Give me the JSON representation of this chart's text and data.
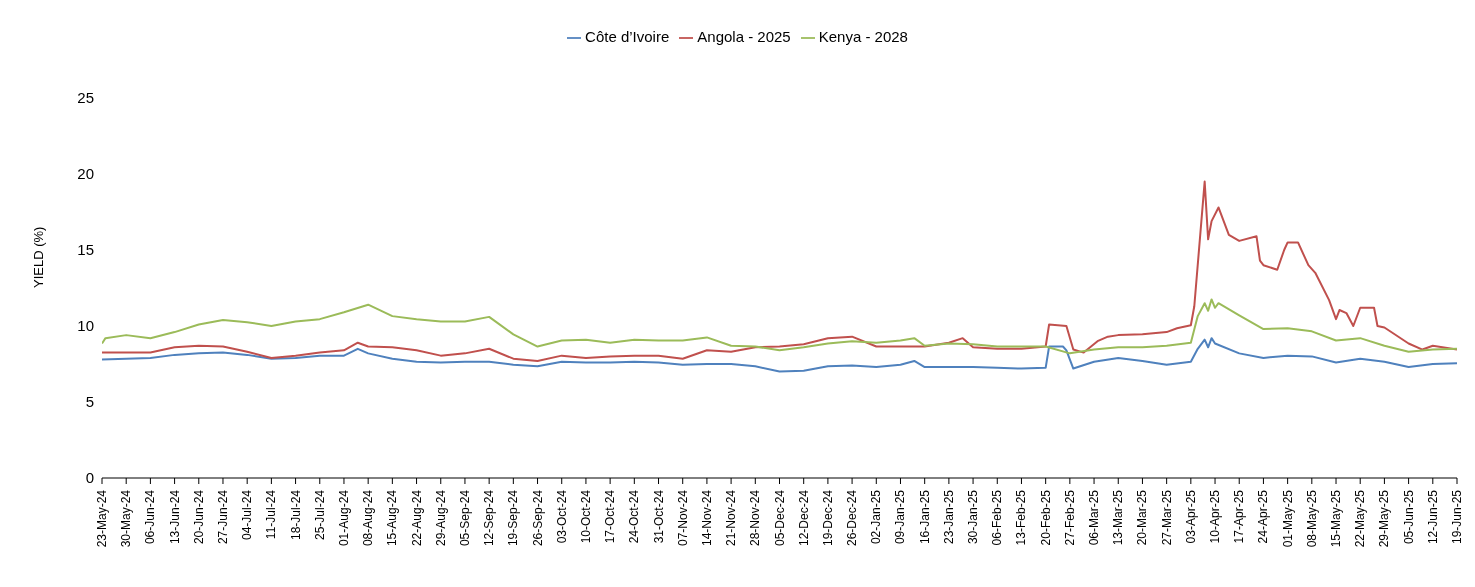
{
  "chart_data": {
    "type": "line",
    "ylabel": "YIELD (%)",
    "legend": "top",
    "grid": false,
    "marker": "none",
    "line_style": "solid",
    "ylim": [
      0,
      25
    ],
    "yticks": [
      0,
      5,
      10,
      15,
      20,
      25
    ],
    "xlim": [
      "2024-05-23",
      "2025-06-19"
    ],
    "xticks": [
      {
        "value": "2024-05-23",
        "label": "23-May-24"
      },
      {
        "value": "2024-05-30",
        "label": "30-May-24"
      },
      {
        "value": "2024-06-06",
        "label": "06-Jun-24"
      },
      {
        "value": "2024-06-13",
        "label": "13-Jun-24"
      },
      {
        "value": "2024-06-20",
        "label": "20-Jun-24"
      },
      {
        "value": "2024-06-27",
        "label": "27-Jun-24"
      },
      {
        "value": "2024-07-04",
        "label": "04-Jul-24"
      },
      {
        "value": "2024-07-11",
        "label": "11-Jul-24"
      },
      {
        "value": "2024-07-18",
        "label": "18-Jul-24"
      },
      {
        "value": "2024-07-25",
        "label": "25-Jul-24"
      },
      {
        "value": "2024-08-01",
        "label": "01-Aug-24"
      },
      {
        "value": "2024-08-08",
        "label": "08-Aug-24"
      },
      {
        "value": "2024-08-15",
        "label": "15-Aug-24"
      },
      {
        "value": "2024-08-22",
        "label": "22-Aug-24"
      },
      {
        "value": "2024-08-29",
        "label": "29-Aug-24"
      },
      {
        "value": "2024-09-05",
        "label": "05-Sep-24"
      },
      {
        "value": "2024-09-12",
        "label": "12-Sep-24"
      },
      {
        "value": "2024-09-19",
        "label": "19-Sep-24"
      },
      {
        "value": "2024-09-26",
        "label": "26-Sep-24"
      },
      {
        "value": "2024-10-03",
        "label": "03-Oct-24"
      },
      {
        "value": "2024-10-10",
        "label": "10-Oct-24"
      },
      {
        "value": "2024-10-17",
        "label": "17-Oct-24"
      },
      {
        "value": "2024-10-24",
        "label": "24-Oct-24"
      },
      {
        "value": "2024-10-31",
        "label": "31-Oct-24"
      },
      {
        "value": "2024-11-07",
        "label": "07-Nov-24"
      },
      {
        "value": "2024-11-14",
        "label": "14-Nov-24"
      },
      {
        "value": "2024-11-21",
        "label": "21-Nov-24"
      },
      {
        "value": "2024-11-28",
        "label": "28-Nov-24"
      },
      {
        "value": "2024-12-05",
        "label": "05-Dec-24"
      },
      {
        "value": "2024-12-12",
        "label": "12-Dec-24"
      },
      {
        "value": "2024-12-19",
        "label": "19-Dec-24"
      },
      {
        "value": "2024-12-26",
        "label": "26-Dec-24"
      },
      {
        "value": "2025-01-02",
        "label": "02-Jan-25"
      },
      {
        "value": "2025-01-09",
        "label": "09-Jan-25"
      },
      {
        "value": "2025-01-16",
        "label": "16-Jan-25"
      },
      {
        "value": "2025-01-23",
        "label": "23-Jan-25"
      },
      {
        "value": "2025-01-30",
        "label": "30-Jan-25"
      },
      {
        "value": "2025-02-06",
        "label": "06-Feb-25"
      },
      {
        "value": "2025-02-13",
        "label": "13-Feb-25"
      },
      {
        "value": "2025-02-20",
        "label": "20-Feb-25"
      },
      {
        "value": "2025-02-27",
        "label": "27-Feb-25"
      },
      {
        "value": "2025-03-06",
        "label": "06-Mar-25"
      },
      {
        "value": "2025-03-13",
        "label": "13-Mar-25"
      },
      {
        "value": "2025-03-20",
        "label": "20-Mar-25"
      },
      {
        "value": "2025-03-27",
        "label": "27-Mar-25"
      },
      {
        "value": "2025-04-03",
        "label": "03-Apr-25"
      },
      {
        "value": "2025-04-10",
        "label": "10-Apr-25"
      },
      {
        "value": "2025-04-17",
        "label": "17-Apr-25"
      },
      {
        "value": "2025-04-24",
        "label": "24-Apr-25"
      },
      {
        "value": "2025-05-01",
        "label": "01-May-25"
      },
      {
        "value": "2025-05-08",
        "label": "08-May-25"
      },
      {
        "value": "2025-05-15",
        "label": "15-May-25"
      },
      {
        "value": "2025-05-22",
        "label": "22-May-25"
      },
      {
        "value": "2025-05-29",
        "label": "29-May-25"
      },
      {
        "value": "2025-06-05",
        "label": "05-Jun-25"
      },
      {
        "value": "2025-06-12",
        "label": "12-Jun-25"
      },
      {
        "value": "2025-06-19",
        "label": "19-Jun-25"
      }
    ],
    "series": [
      {
        "name": "Côte d’Ivoire",
        "color": "#4f81bd",
        "x": [
          "2024-05-23",
          "2024-05-30",
          "2024-06-06",
          "2024-06-13",
          "2024-06-20",
          "2024-06-27",
          "2024-07-04",
          "2024-07-11",
          "2024-07-18",
          "2024-07-25",
          "2024-08-01",
          "2024-08-05",
          "2024-08-08",
          "2024-08-15",
          "2024-08-22",
          "2024-08-29",
          "2024-09-05",
          "2024-09-12",
          "2024-09-19",
          "2024-09-26",
          "2024-10-03",
          "2024-10-10",
          "2024-10-17",
          "2024-10-24",
          "2024-10-31",
          "2024-11-07",
          "2024-11-14",
          "2024-11-21",
          "2024-11-28",
          "2024-12-05",
          "2024-12-12",
          "2024-12-19",
          "2024-12-26",
          "2025-01-02",
          "2025-01-09",
          "2025-01-13",
          "2025-01-16",
          "2025-01-23",
          "2025-01-30",
          "2025-02-06",
          "2025-02-13",
          "2025-02-20",
          "2025-02-21",
          "2025-02-25",
          "2025-02-26",
          "2025-02-28",
          "2025-03-06",
          "2025-03-13",
          "2025-03-20",
          "2025-03-27",
          "2025-04-03",
          "2025-04-05",
          "2025-04-07",
          "2025-04-08",
          "2025-04-09",
          "2025-04-10",
          "2025-04-17",
          "2025-04-24",
          "2025-05-01",
          "2025-05-08",
          "2025-05-15",
          "2025-05-22",
          "2025-05-29",
          "2025-06-05",
          "2025-06-12",
          "2025-06-19"
        ],
        "values": [
          7.8,
          7.85,
          7.9,
          8.1,
          8.2,
          8.25,
          8.1,
          7.85,
          7.9,
          8.05,
          8.05,
          8.5,
          8.2,
          7.85,
          7.65,
          7.6,
          7.65,
          7.65,
          7.45,
          7.35,
          7.65,
          7.6,
          7.6,
          7.65,
          7.6,
          7.45,
          7.5,
          7.5,
          7.35,
          7.0,
          7.05,
          7.35,
          7.4,
          7.3,
          7.45,
          7.7,
          7.3,
          7.3,
          7.3,
          7.25,
          7.2,
          7.25,
          8.65,
          8.65,
          8.4,
          7.2,
          7.65,
          7.9,
          7.7,
          7.45,
          7.65,
          8.5,
          9.1,
          8.6,
          9.2,
          8.85,
          8.2,
          7.9,
          8.05,
          8.0,
          7.6,
          7.85,
          7.65,
          7.3,
          7.5,
          7.55
        ]
      },
      {
        "name": "Angola - 2025",
        "color": "#c0504d",
        "x": [
          "2024-05-23",
          "2024-05-30",
          "2024-06-06",
          "2024-06-13",
          "2024-06-20",
          "2024-06-27",
          "2024-07-04",
          "2024-07-11",
          "2024-07-18",
          "2024-07-25",
          "2024-08-01",
          "2024-08-05",
          "2024-08-08",
          "2024-08-15",
          "2024-08-22",
          "2024-08-29",
          "2024-09-05",
          "2024-09-12",
          "2024-09-19",
          "2024-09-26",
          "2024-10-03",
          "2024-10-10",
          "2024-10-17",
          "2024-10-24",
          "2024-10-31",
          "2024-11-07",
          "2024-11-14",
          "2024-11-21",
          "2024-11-28",
          "2024-12-05",
          "2024-12-12",
          "2024-12-19",
          "2024-12-26",
          "2025-01-02",
          "2025-01-09",
          "2025-01-16",
          "2025-01-23",
          "2025-01-27",
          "2025-01-30",
          "2025-02-06",
          "2025-02-13",
          "2025-02-20",
          "2025-02-21",
          "2025-02-26",
          "2025-02-28",
          "2025-03-03",
          "2025-03-07",
          "2025-03-10",
          "2025-03-13",
          "2025-03-20",
          "2025-03-27",
          "2025-03-30",
          "2025-04-03",
          "2025-04-04",
          "2025-04-07",
          "2025-04-08",
          "2025-04-09",
          "2025-04-11",
          "2025-04-14",
          "2025-04-17",
          "2025-04-22",
          "2025-04-23",
          "2025-04-24",
          "2025-04-28",
          "2025-04-30",
          "2025-05-01",
          "2025-05-04",
          "2025-05-07",
          "2025-05-09",
          "2025-05-13",
          "2025-05-15",
          "2025-05-16",
          "2025-05-18",
          "2025-05-20",
          "2025-05-22",
          "2025-05-26",
          "2025-05-27",
          "2025-05-29",
          "2025-06-05",
          "2025-06-09",
          "2025-06-12",
          "2025-06-19"
        ],
        "values": [
          8.25,
          8.25,
          8.25,
          8.6,
          8.7,
          8.65,
          8.3,
          7.9,
          8.05,
          8.25,
          8.4,
          8.9,
          8.65,
          8.6,
          8.4,
          8.05,
          8.2,
          8.5,
          7.85,
          7.7,
          8.05,
          7.9,
          8.0,
          8.05,
          8.05,
          7.85,
          8.4,
          8.3,
          8.6,
          8.65,
          8.8,
          9.2,
          9.3,
          8.65,
          8.65,
          8.65,
          8.9,
          9.2,
          8.6,
          8.5,
          8.5,
          8.65,
          10.1,
          10.0,
          8.45,
          8.25,
          9.0,
          9.3,
          9.4,
          9.45,
          9.6,
          9.85,
          10.05,
          11.3,
          19.5,
          15.7,
          16.9,
          17.8,
          16.0,
          15.6,
          15.9,
          14.3,
          14.0,
          13.7,
          15.0,
          15.5,
          15.5,
          14.0,
          13.5,
          11.7,
          10.45,
          11.05,
          10.85,
          10.0,
          11.2,
          11.2,
          10.0,
          9.9,
          8.85,
          8.45,
          8.7,
          8.45
        ]
      },
      {
        "name": "Kenya -  2028",
        "color": "#9bbb59",
        "x": [
          "2024-05-23",
          "2024-05-24",
          "2024-05-30",
          "2024-06-06",
          "2024-06-13",
          "2024-06-20",
          "2024-06-27",
          "2024-07-04",
          "2024-07-11",
          "2024-07-18",
          "2024-07-25",
          "2024-08-01",
          "2024-08-08",
          "2024-08-15",
          "2024-08-22",
          "2024-08-29",
          "2024-09-05",
          "2024-09-12",
          "2024-09-19",
          "2024-09-26",
          "2024-10-03",
          "2024-10-10",
          "2024-10-17",
          "2024-10-24",
          "2024-10-31",
          "2024-11-07",
          "2024-11-14",
          "2024-11-21",
          "2024-11-28",
          "2024-12-05",
          "2024-12-12",
          "2024-12-19",
          "2024-12-26",
          "2025-01-02",
          "2025-01-09",
          "2025-01-13",
          "2025-01-16",
          "2025-01-23",
          "2025-01-30",
          "2025-02-06",
          "2025-02-13",
          "2025-02-20",
          "2025-02-27",
          "2025-03-06",
          "2025-03-13",
          "2025-03-20",
          "2025-03-27",
          "2025-04-03",
          "2025-04-05",
          "2025-04-07",
          "2025-04-08",
          "2025-04-09",
          "2025-04-10",
          "2025-04-11",
          "2025-04-17",
          "2025-04-24",
          "2025-05-01",
          "2025-05-08",
          "2025-05-15",
          "2025-05-22",
          "2025-05-29",
          "2025-06-05",
          "2025-06-12",
          "2025-06-19"
        ],
        "values": [
          8.85,
          9.2,
          9.4,
          9.2,
          9.6,
          10.1,
          10.4,
          10.25,
          10.0,
          10.3,
          10.45,
          10.9,
          11.4,
          10.65,
          10.45,
          10.3,
          10.3,
          10.6,
          9.45,
          8.65,
          9.05,
          9.1,
          8.9,
          9.1,
          9.05,
          9.05,
          9.25,
          8.7,
          8.65,
          8.4,
          8.6,
          8.85,
          9.0,
          8.9,
          9.05,
          9.2,
          8.7,
          8.85,
          8.8,
          8.65,
          8.65,
          8.65,
          8.2,
          8.45,
          8.6,
          8.6,
          8.7,
          8.9,
          10.65,
          11.5,
          11.0,
          11.75,
          11.2,
          11.5,
          10.7,
          9.8,
          9.85,
          9.65,
          9.05,
          9.2,
          8.7,
          8.3,
          8.45,
          8.5
        ]
      }
    ]
  }
}
